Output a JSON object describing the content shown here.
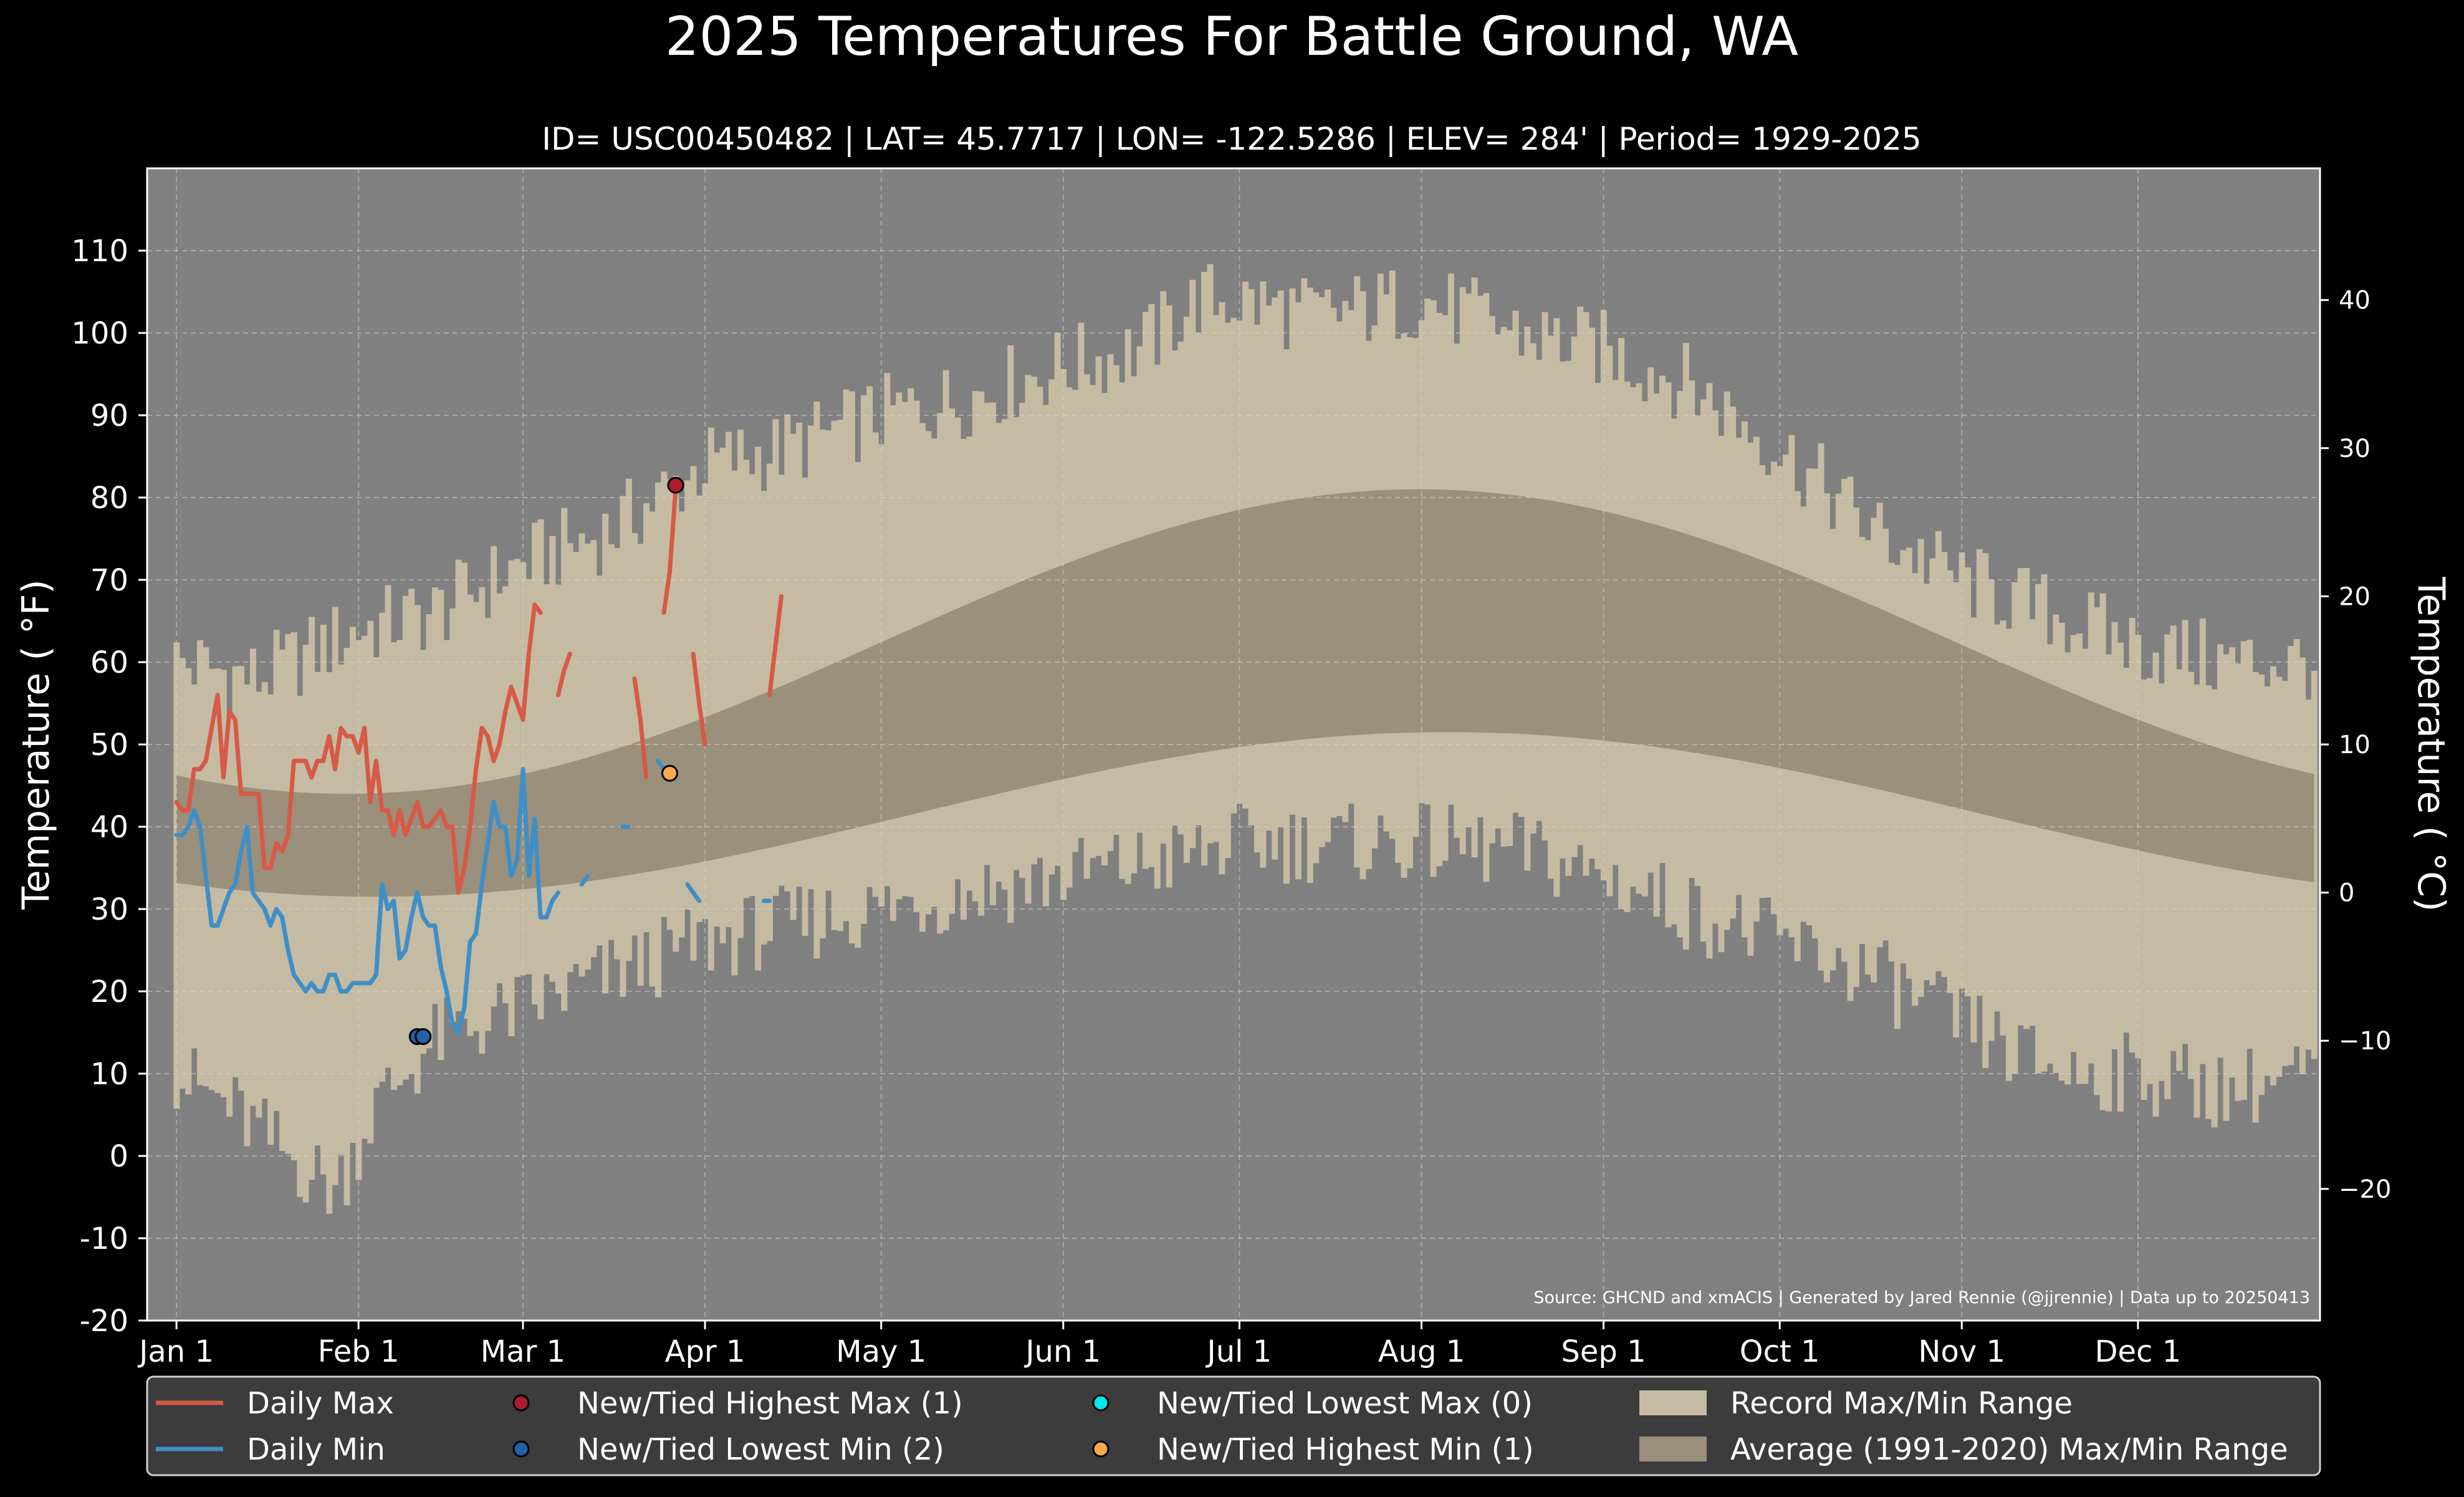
{
  "chart_data": {
    "type": "area",
    "title": "2025 Temperatures For Battle Ground, WA",
    "subtitle": "ID= USC00450482 | LAT= 45.7717 | LON= -122.5286 | ELEV= 284' | Period= 1929-2025",
    "ylabel": "Temperature ( $^\\circ$F)",
    "ylabel_display": "Temperature ( °F)",
    "ylabel_right": "Temperature ( °C)",
    "source": "Source: GHCND and xmACIS | Generated by Jared Rennie (@jjrennie) | Data up to 20250413",
    "ylim": [
      -20,
      120
    ],
    "y_ticks": [
      -20,
      -10,
      0,
      10,
      20,
      30,
      40,
      50,
      60,
      70,
      80,
      90,
      100,
      110
    ],
    "y_right_ticks": [
      -20,
      -10,
      0,
      10,
      20,
      30,
      40
    ],
    "x_ticks": [
      {
        "label": "Jan 1",
        "day": 1
      },
      {
        "label": "Feb 1",
        "day": 32
      },
      {
        "label": "Mar 1",
        "day": 60
      },
      {
        "label": "Apr 1",
        "day": 91
      },
      {
        "label": "May 1",
        "day": 121
      },
      {
        "label": "Jun 1",
        "day": 152
      },
      {
        "label": "Jul 1",
        "day": 182
      },
      {
        "label": "Aug 1",
        "day": 213
      },
      {
        "label": "Sep 1",
        "day": 244
      },
      {
        "label": "Oct 1",
        "day": 274
      },
      {
        "label": "Nov 1",
        "day": 305
      },
      {
        "label": "Dec 1",
        "day": 335
      }
    ],
    "xlim": [
      -4,
      366
    ],
    "grid": true,
    "legend_position": "bottom",
    "colors": {
      "background": "#000000",
      "plot_bg": "#808080",
      "record_range": "#c4bba2",
      "average_range": "#9a907c",
      "daily_max": "#d65a46",
      "daily_min": "#3f8fc6",
      "new_highest_max": "#b01c2e",
      "new_lowest_min": "#2360a6",
      "new_lowest_max": "#00e8e8",
      "new_highest_min": "#f6a84c",
      "legend_bg": "#3c3c3c"
    },
    "record_max_anchors": [
      [
        1,
        60
      ],
      [
        15,
        58
      ],
      [
        32,
        64
      ],
      [
        45,
        66
      ],
      [
        60,
        72
      ],
      [
        75,
        76
      ],
      [
        91,
        84
      ],
      [
        105,
        86
      ],
      [
        121,
        90
      ],
      [
        135,
        92
      ],
      [
        152,
        96
      ],
      [
        165,
        98
      ],
      [
        175,
        104
      ],
      [
        182,
        104
      ],
      [
        195,
        102
      ],
      [
        213,
        104
      ],
      [
        230,
        100
      ],
      [
        244,
        98
      ],
      [
        258,
        94
      ],
      [
        274,
        86
      ],
      [
        290,
        76
      ],
      [
        305,
        70
      ],
      [
        320,
        66
      ],
      [
        335,
        62
      ],
      [
        350,
        60
      ],
      [
        365,
        60
      ]
    ],
    "record_min_anchors": [
      [
        1,
        10
      ],
      [
        10,
        6
      ],
      [
        20,
        0
      ],
      [
        28,
        -4
      ],
      [
        35,
        6
      ],
      [
        45,
        14
      ],
      [
        60,
        18
      ],
      [
        75,
        22
      ],
      [
        91,
        26
      ],
      [
        105,
        28
      ],
      [
        121,
        30
      ],
      [
        135,
        32
      ],
      [
        152,
        34
      ],
      [
        170,
        36
      ],
      [
        182,
        38
      ],
      [
        195,
        38
      ],
      [
        213,
        38
      ],
      [
        230,
        37
      ],
      [
        244,
        34
      ],
      [
        258,
        30
      ],
      [
        274,
        26
      ],
      [
        290,
        22
      ],
      [
        305,
        16
      ],
      [
        315,
        12
      ],
      [
        325,
        10
      ],
      [
        335,
        10
      ],
      [
        350,
        8
      ],
      [
        365,
        10
      ]
    ],
    "series": [
      {
        "name": "Daily Max",
        "segments": [
          [
            [
              1,
              43
            ],
            [
              2,
              42
            ],
            [
              3,
              42
            ],
            [
              4,
              47
            ],
            [
              5,
              47
            ],
            [
              6,
              48
            ],
            [
              7,
              52
            ],
            [
              8,
              56
            ],
            [
              9,
              46
            ],
            [
              10,
              54
            ],
            [
              11,
              53
            ],
            [
              12,
              44
            ],
            [
              13,
              44
            ],
            [
              14,
              44
            ],
            [
              15,
              44
            ],
            [
              16,
              35
            ],
            [
              17,
              35
            ],
            [
              18,
              38
            ],
            [
              19,
              37
            ],
            [
              20,
              39
            ],
            [
              21,
              48
            ],
            [
              22,
              48
            ],
            [
              23,
              48
            ],
            [
              24,
              46
            ],
            [
              25,
              48
            ],
            [
              26,
              48
            ],
            [
              27,
              51
            ],
            [
              28,
              47
            ],
            [
              29,
              52
            ],
            [
              30,
              51
            ],
            [
              31,
              51
            ],
            [
              32,
              49
            ],
            [
              33,
              52
            ],
            [
              34,
              43
            ],
            [
              35,
              48
            ],
            [
              36,
              42
            ],
            [
              37,
              42
            ],
            [
              38,
              39
            ],
            [
              39,
              42
            ],
            [
              40,
              39
            ],
            [
              41,
              41
            ],
            [
              42,
              43
            ],
            [
              43,
              40
            ],
            [
              44,
              40
            ],
            [
              45,
              41
            ],
            [
              46,
              42
            ],
            [
              47,
              40
            ],
            [
              48,
              40
            ],
            [
              49,
              32
            ],
            [
              50,
              35
            ],
            [
              51,
              40
            ],
            [
              52,
              47
            ],
            [
              53,
              52
            ],
            [
              54,
              51
            ],
            [
              55,
              48
            ],
            [
              56,
              50
            ],
            [
              57,
              54
            ],
            [
              58,
              57
            ],
            [
              59,
              55
            ],
            [
              60,
              53
            ],
            [
              61,
              61
            ],
            [
              62,
              67
            ],
            [
              63,
              66
            ]
          ],
          [
            [
              66,
              56
            ],
            [
              67,
              59
            ],
            [
              68,
              61
            ]
          ],
          [
            [
              79,
              58
            ],
            [
              80,
              53
            ],
            [
              81,
              46
            ]
          ],
          [
            [
              84,
              66
            ],
            [
              85,
              71
            ],
            [
              86,
              81
            ]
          ],
          [
            [
              89,
              61
            ],
            [
              90,
              55
            ],
            [
              91,
              50
            ]
          ],
          [
            [
              102,
              56
            ],
            [
              103,
              62
            ],
            [
              104,
              68
            ]
          ]
        ]
      },
      {
        "name": "Daily Min",
        "segments": [
          [
            [
              1,
              39
            ],
            [
              2,
              39
            ],
            [
              3,
              40
            ],
            [
              4,
              42
            ],
            [
              5,
              40
            ],
            [
              6,
              34
            ],
            [
              7,
              28
            ],
            [
              8,
              28
            ],
            [
              9,
              30
            ],
            [
              10,
              32
            ],
            [
              11,
              33
            ],
            [
              12,
              37
            ],
            [
              13,
              40
            ],
            [
              14,
              32
            ],
            [
              15,
              31
            ],
            [
              16,
              30
            ],
            [
              17,
              28
            ],
            [
              18,
              30
            ],
            [
              19,
              29
            ],
            [
              20,
              25
            ],
            [
              21,
              22
            ],
            [
              22,
              21
            ],
            [
              23,
              20
            ],
            [
              24,
              21
            ],
            [
              25,
              20
            ],
            [
              26,
              20
            ],
            [
              27,
              22
            ],
            [
              28,
              22
            ],
            [
              29,
              20
            ],
            [
              30,
              20
            ],
            [
              31,
              21
            ],
            [
              32,
              21
            ],
            [
              33,
              21
            ],
            [
              34,
              21
            ],
            [
              35,
              22
            ],
            [
              36,
              33
            ],
            [
              37,
              30
            ],
            [
              38,
              31
            ],
            [
              39,
              24
            ],
            [
              40,
              25
            ],
            [
              41,
              29
            ],
            [
              42,
              32
            ],
            [
              43,
              29
            ],
            [
              44,
              28
            ],
            [
              45,
              28
            ],
            [
              46,
              23
            ],
            [
              47,
              20
            ],
            [
              48,
              16
            ],
            [
              49,
              15
            ],
            [
              50,
              18
            ],
            [
              51,
              26
            ],
            [
              52,
              27
            ],
            [
              53,
              33
            ],
            [
              54,
              38
            ],
            [
              55,
              43
            ],
            [
              56,
              40
            ],
            [
              57,
              40
            ],
            [
              58,
              34
            ],
            [
              59,
              36
            ],
            [
              60,
              47
            ],
            [
              61,
              34
            ],
            [
              62,
              41
            ],
            [
              63,
              29
            ],
            [
              64,
              29
            ],
            [
              65,
              31
            ],
            [
              66,
              32
            ]
          ],
          [
            [
              70,
              33
            ],
            [
              71,
              34
            ]
          ],
          [
            [
              77,
              40
            ],
            [
              78,
              40
            ]
          ],
          [
            [
              83,
              48
            ],
            [
              84,
              47
            ]
          ],
          [
            [
              88,
              33
            ],
            [
              89,
              32
            ],
            [
              90,
              31
            ]
          ],
          [
            [
              101,
              31
            ],
            [
              102,
              31
            ]
          ]
        ]
      }
    ],
    "markers": [
      {
        "name": "New/Tied Highest Max (1)",
        "points": [
          [
            86,
            81.5
          ]
        ]
      },
      {
        "name": "New/Tied Lowest Min (2)",
        "points": [
          [
            42,
            14.5
          ],
          [
            43,
            14.5
          ]
        ]
      },
      {
        "name": "New/Tied Lowest Max (0)",
        "points": []
      },
      {
        "name": "New/Tied Highest Min (1)",
        "points": [
          [
            85,
            46.5
          ]
        ]
      }
    ],
    "legend": [
      "Daily Max",
      "New/Tied Highest Max (1)",
      "New/Tied Lowest Max (0)",
      "Record Max/Min Range",
      "Daily Min",
      "New/Tied Lowest Min (2)",
      "New/Tied Highest Min (1)",
      "Average (1991-2020) Max/Min Range"
    ]
  }
}
